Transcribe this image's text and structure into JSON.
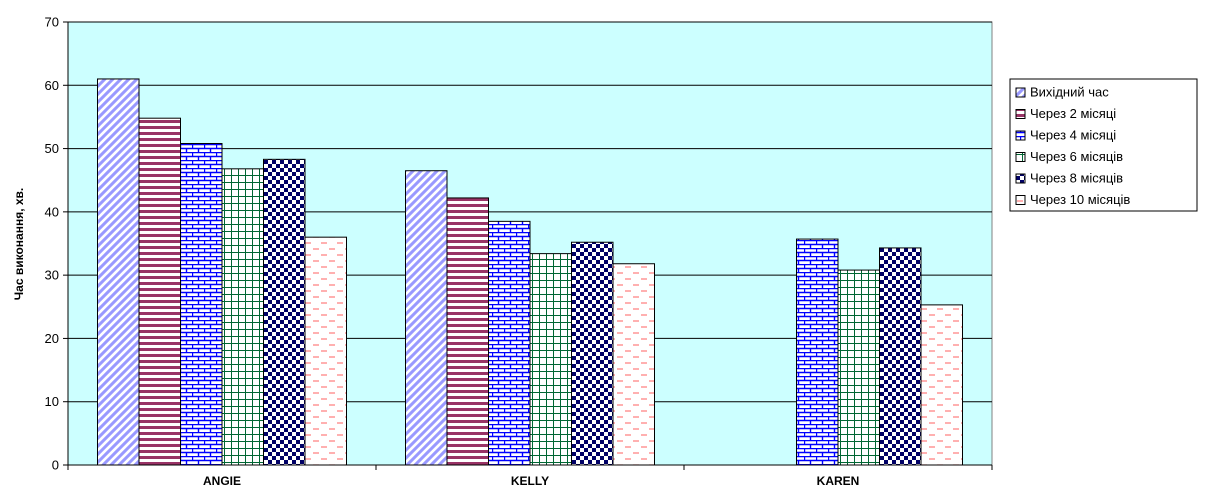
{
  "chart_data": {
    "type": "bar",
    "categories": [
      "ANGIE",
      "KELLY",
      "KAREN"
    ],
    "ylabel": "Час виконання, хв.",
    "xlabel": "",
    "ylim": [
      0,
      70
    ],
    "yticks": [
      0,
      10,
      20,
      30,
      40,
      50,
      60,
      70
    ],
    "grid": true,
    "legend_position": "right",
    "plot_background": "#ccffff",
    "series": [
      {
        "name": "Вихідний час",
        "values": [
          61,
          46.5,
          null
        ],
        "color": "#9999ff",
        "pattern": "diagonal"
      },
      {
        "name": "Через 2 місяці",
        "values": [
          54.8,
          42.2,
          null
        ],
        "color": "#993366",
        "pattern": "horizontal"
      },
      {
        "name": "Через 4 місяці",
        "values": [
          50.8,
          38.5,
          35.7
        ],
        "color": "#0000ff",
        "pattern": "brick"
      },
      {
        "name": "Через 6 місяців",
        "values": [
          46.8,
          33.4,
          30.8
        ],
        "color": "#006633",
        "pattern": "grid"
      },
      {
        "name": "Через 8 місяців",
        "values": [
          48.3,
          35.2,
          34.3
        ],
        "color": "#000066",
        "pattern": "checker"
      },
      {
        "name": "Через 10 місяців",
        "values": [
          36,
          31.8,
          25.3
        ],
        "color": "#ff8080",
        "pattern": "dash"
      }
    ]
  }
}
